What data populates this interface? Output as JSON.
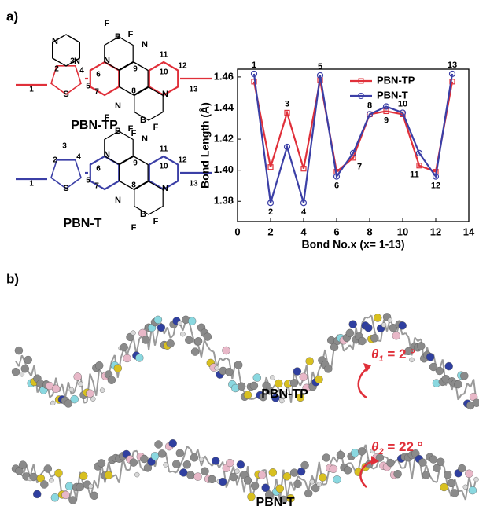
{
  "panel_a": {
    "label": "a)",
    "molecule_1": {
      "name": "PBN-TP",
      "atoms": [
        "N",
        "N",
        "S",
        "N",
        "B",
        "F",
        "F",
        "N",
        "N",
        "B",
        "F",
        "F",
        "N",
        "N"
      ],
      "numbers": [
        "1",
        "2",
        "3",
        "4",
        "5",
        "6",
        "7",
        "8",
        "9",
        "10",
        "11",
        "12",
        "13"
      ]
    },
    "molecule_2": {
      "name": "PBN-T",
      "atoms": [
        "S",
        "N",
        "B",
        "F",
        "F",
        "N",
        "N",
        "B",
        "F",
        "F",
        "N",
        "N"
      ],
      "numbers": [
        "1",
        "2",
        "3",
        "4",
        "5",
        "6",
        "7",
        "8",
        "9",
        "10",
        "11",
        "12",
        "13"
      ]
    }
  },
  "panel_b": {
    "label": "b)",
    "name_1": "PBN-TP",
    "name_2": "PBN-T",
    "theta_1": {
      "symbol": "θ",
      "sub": "1",
      "rest": " = 2 °"
    },
    "theta_2": {
      "symbol": "θ",
      "sub": "2",
      "rest": " = 22 °"
    }
  },
  "chart_data": {
    "type": "line",
    "x_label": "Bond No.x (x= 1-13)",
    "y_label": "Bond Length (Å)",
    "x": [
      1,
      2,
      3,
      4,
      5,
      6,
      7,
      8,
      9,
      10,
      11,
      12,
      13
    ],
    "series": [
      {
        "name": "PBN-TP",
        "color": "#e0303a",
        "marker": "square",
        "values": [
          1.457,
          1.402,
          1.437,
          1.401,
          1.458,
          1.399,
          1.408,
          1.436,
          1.438,
          1.436,
          1.403,
          1.399,
          1.457
        ]
      },
      {
        "name": "PBN-T",
        "color": "#3b3fa6",
        "marker": "circle",
        "values": [
          1.462,
          1.379,
          1.415,
          1.379,
          1.461,
          1.396,
          1.411,
          1.436,
          1.441,
          1.437,
          1.411,
          1.396,
          1.462
        ]
      }
    ],
    "xlim": [
      0,
      14
    ],
    "xticks": [
      0,
      2,
      4,
      6,
      8,
      10,
      12,
      14
    ],
    "ylim": [
      1.367,
      1.465
    ],
    "yticks": [
      1.38,
      {
        "value": 1.4,
        "label": "1.40"
      },
      1.42,
      1.44,
      1.46
    ],
    "legend": "upper right"
  }
}
